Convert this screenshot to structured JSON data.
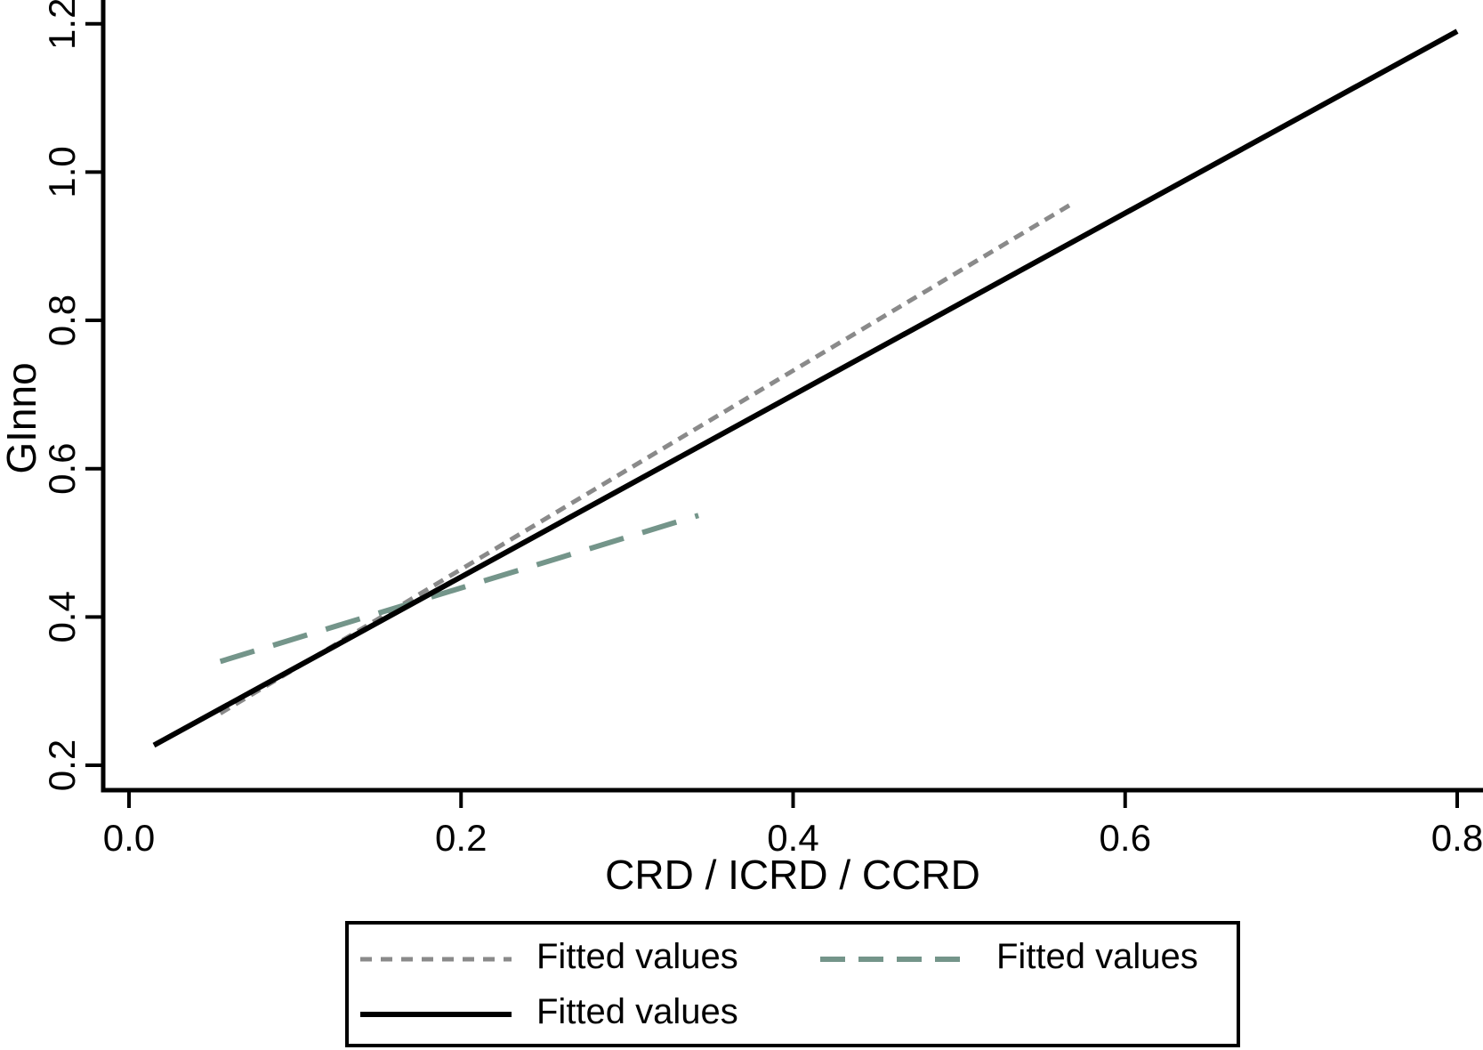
{
  "chart_data": {
    "type": "line",
    "title": "",
    "xlabel": "CRD / ICRD / CCRD",
    "ylabel": "GInno",
    "x_ticks": [
      0.0,
      0.2,
      0.4,
      0.6,
      0.8
    ],
    "x_tick_labels": [
      "0.0",
      "0.2",
      "0.4",
      "0.6",
      "0.8"
    ],
    "y_ticks": [
      0.2,
      0.4,
      0.6,
      0.8,
      1.0,
      1.2
    ],
    "y_tick_labels": [
      "0.2",
      "0.4",
      "0.6",
      "0.8",
      "1.0",
      "1.2"
    ],
    "xlim": [
      0.0,
      0.815
    ],
    "ylim": [
      0.166,
      1.232
    ],
    "grid": false,
    "legend_position": "bottom",
    "axis_color": "#000000",
    "series": [
      {
        "name": "Fitted values",
        "style": "short-dash",
        "color": "#8a8a8a",
        "width": 5,
        "dash": [
          12,
          8
        ],
        "legend_dash": [
          13,
          10
        ],
        "points": [
          [
            0.055,
            0.27
          ],
          [
            0.57,
            0.96
          ]
        ]
      },
      {
        "name": "Fitted values",
        "style": "long-dash",
        "color": "#74958a",
        "width": 6,
        "dash": [
          40,
          22
        ],
        "legend_dash": [
          28,
          15
        ],
        "points": [
          [
            0.055,
            0.34
          ],
          [
            0.343,
            0.537
          ]
        ]
      },
      {
        "name": "Fitted values",
        "style": "solid",
        "color": "#000000",
        "width": 6,
        "dash": null,
        "legend_dash": null,
        "points": [
          [
            0.015,
            0.227
          ],
          [
            0.8,
            1.19
          ]
        ]
      }
    ]
  },
  "legend": {
    "items": [
      {
        "label": "Fitted values",
        "series": 0
      },
      {
        "label": "Fitted values",
        "series": 1
      },
      {
        "label": "Fitted values",
        "series": 2
      }
    ]
  }
}
